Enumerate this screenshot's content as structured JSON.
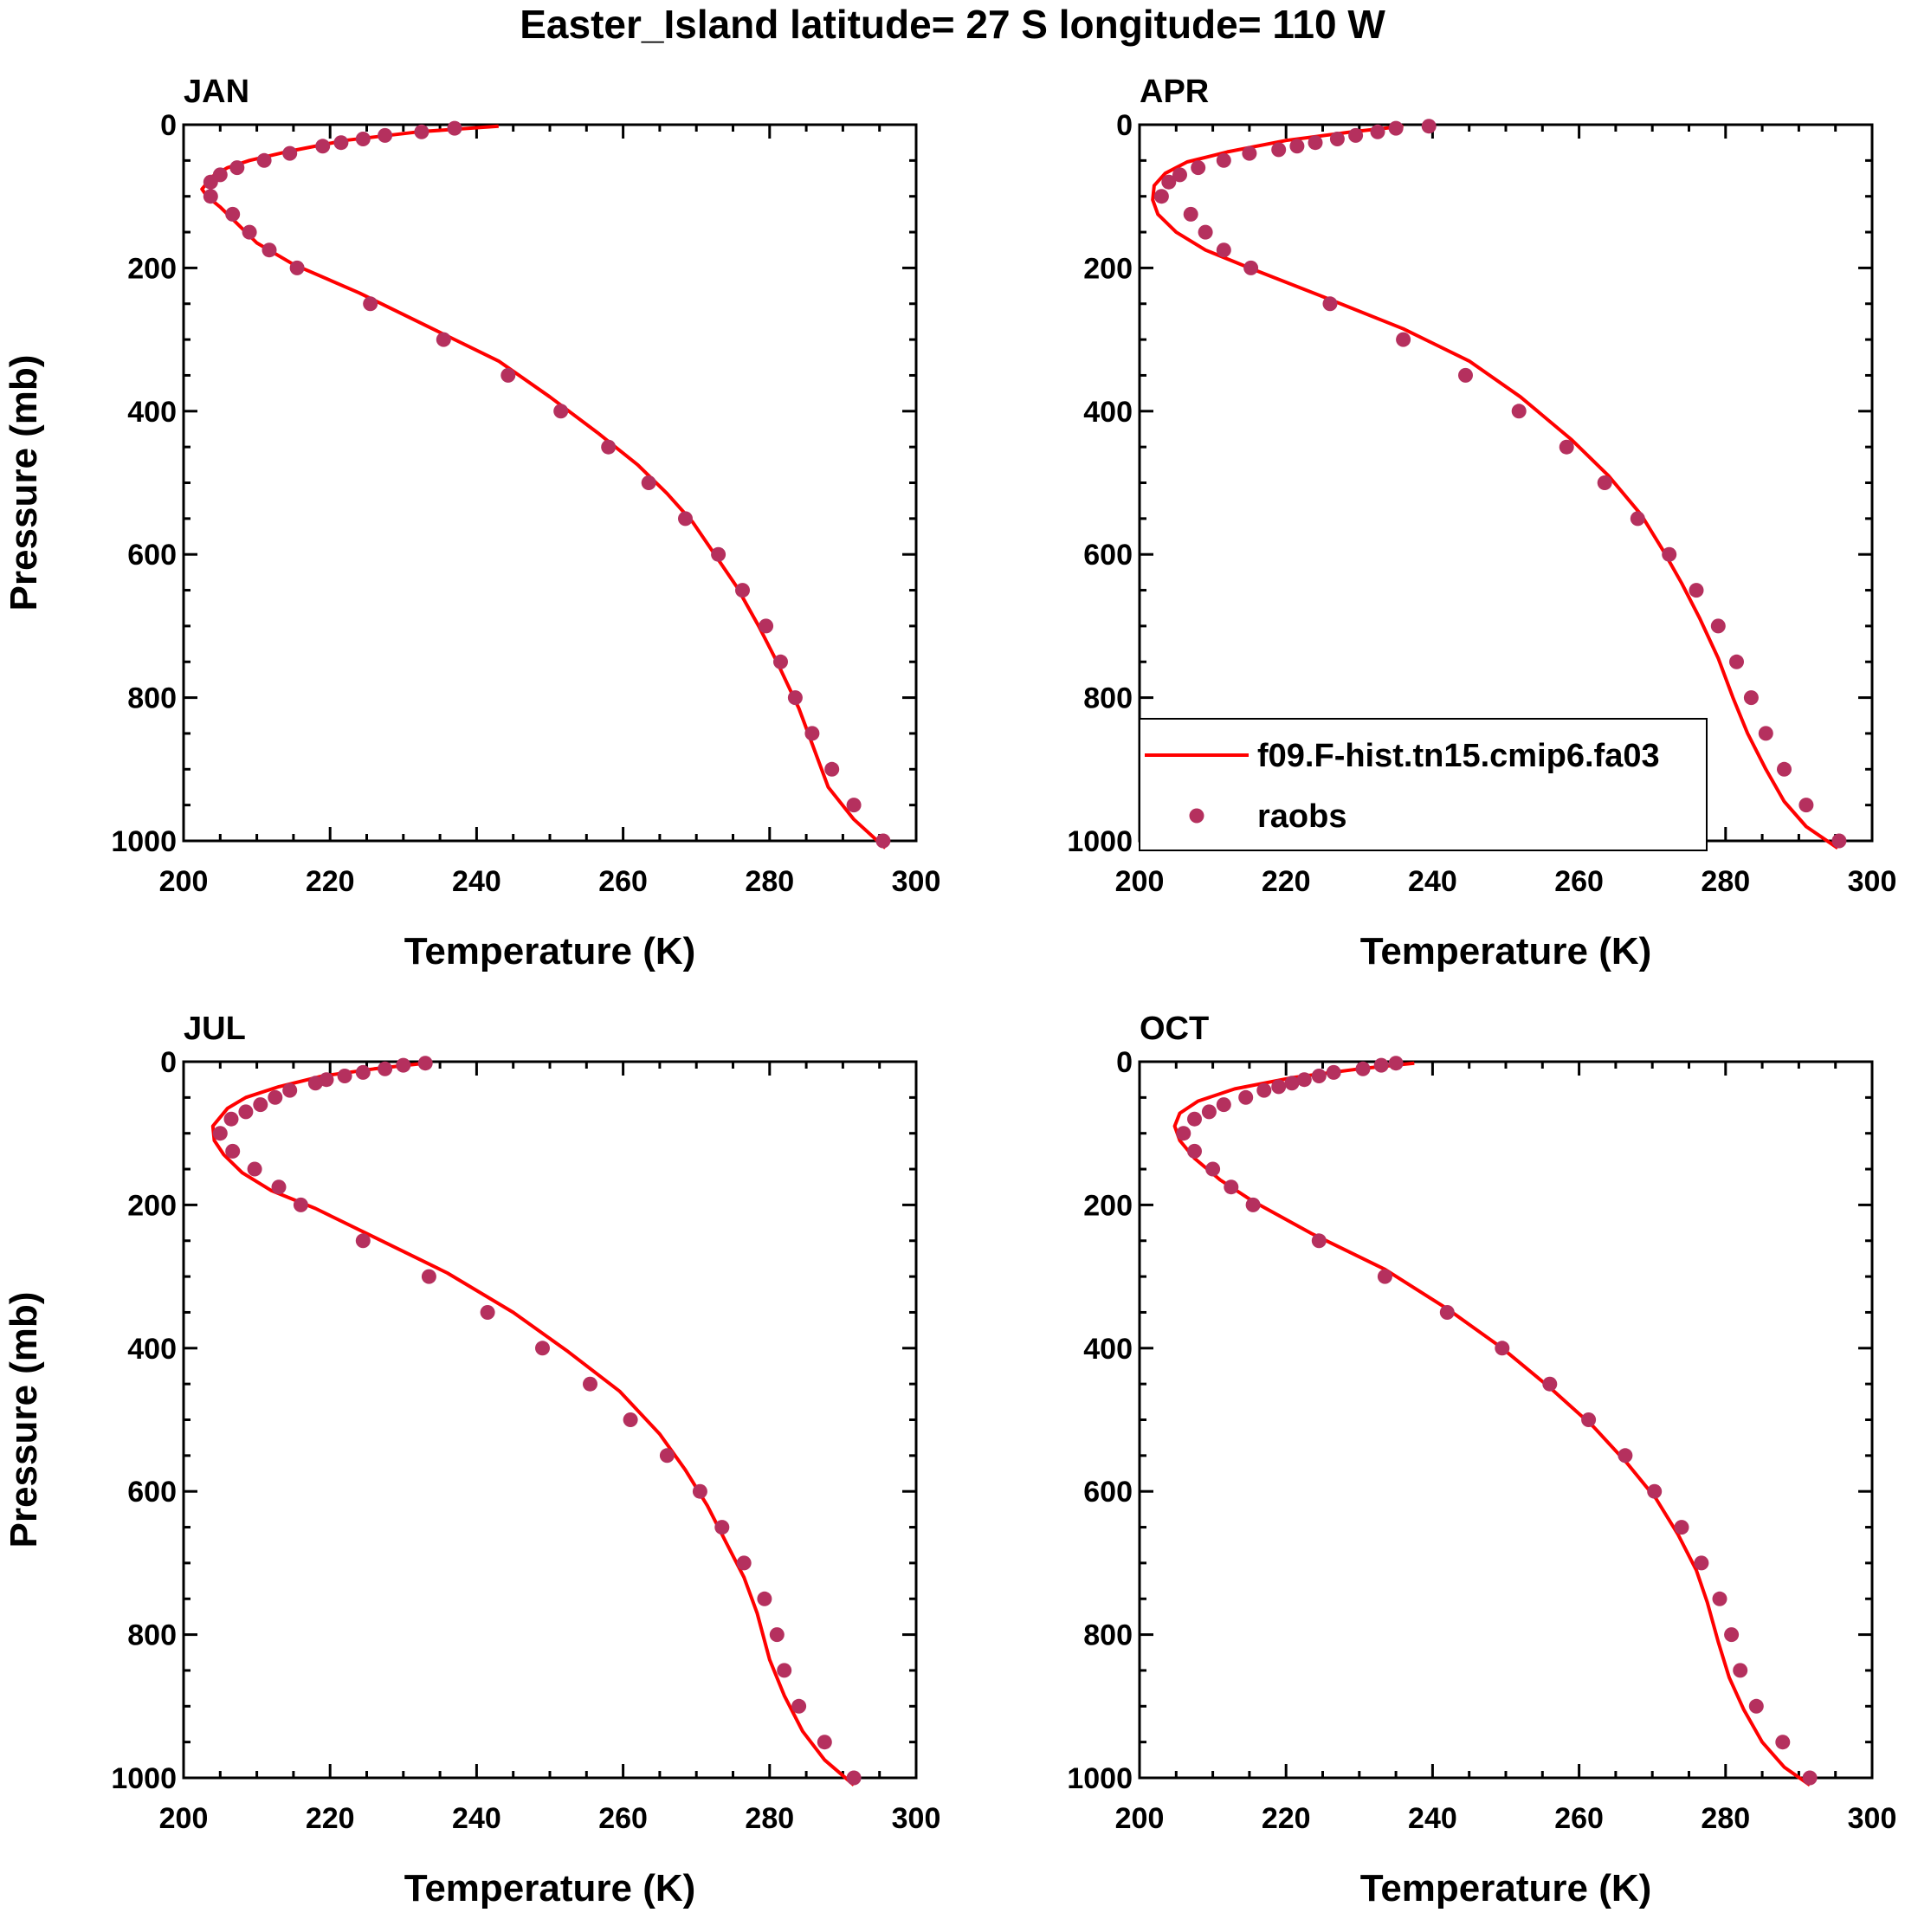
{
  "figure": {
    "title": "Easter_Island  latitude= 27 S longitude= 110 W"
  },
  "chart_data": [
    {
      "type": "line",
      "panel": "JAN",
      "xlabel": "Temperature (K)",
      "ylabel": "Pressure (mb)",
      "xlim": [
        200,
        300
      ],
      "ylim": [
        1000,
        0
      ],
      "xticks": [
        "200",
        "220",
        "240",
        "260",
        "280",
        "300"
      ],
      "yticks": [
        "0",
        "200",
        "400",
        "600",
        "800",
        "1000"
      ],
      "legend": null,
      "series": [
        {
          "name": "f09.F-hist.tn15.cmip6.fa03",
          "kind": "line",
          "color": "#ff0000",
          "x": [
            243,
            232,
            222,
            214,
            209,
            206,
            204,
            202.5,
            203.2,
            205,
            207,
            210,
            215,
            224,
            234,
            243,
            250,
            256.5,
            262,
            266,
            269.5,
            272.5,
            275.5,
            278.5,
            281,
            284,
            286,
            288,
            291.5,
            295.8
          ],
          "y": [
            2,
            10,
            22,
            38,
            50,
            60,
            72,
            90,
            100,
            115,
            135,
            165,
            195,
            235,
            285,
            330,
            380,
            430,
            475,
            515,
            555,
            600,
            645,
            700,
            750,
            815,
            870,
            925,
            970,
            1010
          ]
        },
        {
          "name": "raobs",
          "kind": "scatter",
          "color": "#b5305e",
          "x": [
            237,
            232.5,
            227.5,
            224.5,
            221.5,
            219,
            214.5,
            211,
            207.3,
            205,
            203.7,
            203.7,
            206.7,
            209,
            211.7,
            215.5,
            225.5,
            235.5,
            244.3,
            251.5,
            258,
            263.5,
            268.5,
            273,
            276.3,
            279.5,
            281.5,
            283.5,
            285.8,
            288.5,
            291.5,
            295.5
          ],
          "y": [
            5,
            10,
            15,
            20,
            25,
            30,
            40,
            50,
            60,
            70,
            80,
            100,
            125,
            150,
            175,
            200,
            250,
            300,
            350,
            400,
            450,
            500,
            550,
            600,
            650,
            700,
            750,
            800,
            850,
            900,
            950,
            1000
          ]
        }
      ]
    },
    {
      "type": "line",
      "panel": "APR",
      "xlabel": "Temperature (K)",
      "ylabel": "",
      "xlim": [
        200,
        300
      ],
      "ylim": [
        1000,
        0
      ],
      "xticks": [
        "200",
        "220",
        "240",
        "260",
        "280",
        "300"
      ],
      "yticks": [
        "0",
        "200",
        "400",
        "600",
        "800",
        "1000"
      ],
      "legend": "lower-left",
      "series": [
        {
          "name": "f09.F-hist.tn15.cmip6.fa03",
          "kind": "line",
          "color": "#ff0000",
          "x": [
            236,
            229,
            220,
            212,
            206.5,
            203.5,
            202,
            201.8,
            202.5,
            205,
            209,
            215,
            225,
            236,
            245,
            252,
            259,
            264,
            268.5,
            271.5,
            274,
            276.5,
            279,
            281,
            283,
            285.5,
            288,
            291,
            295.3
          ],
          "y": [
            2,
            10,
            22,
            38,
            52,
            68,
            85,
            105,
            125,
            150,
            175,
            200,
            240,
            285,
            330,
            380,
            440,
            490,
            545,
            595,
            640,
            690,
            745,
            800,
            850,
            900,
            945,
            980,
            1010
          ]
        },
        {
          "name": "raobs",
          "kind": "scatter",
          "color": "#b5305e",
          "x": [
            239.5,
            235,
            232.5,
            229.5,
            227,
            224,
            221.5,
            219,
            215,
            211.5,
            208,
            205.5,
            204,
            203,
            207,
            209,
            211.5,
            215.2,
            226,
            236,
            244.5,
            251.8,
            258.3,
            263.5,
            268,
            272.3,
            276,
            279,
            281.5,
            283.5,
            285.5,
            288,
            291,
            295.5
          ],
          "y": [
            2,
            5,
            10,
            15,
            20,
            25,
            30,
            35,
            40,
            50,
            60,
            70,
            80,
            100,
            125,
            150,
            175,
            200,
            250,
            300,
            350,
            400,
            450,
            500,
            550,
            600,
            650,
            700,
            750,
            800,
            850,
            900,
            950,
            1000
          ]
        }
      ]
    },
    {
      "type": "line",
      "panel": "JUL",
      "xlabel": "Temperature (K)",
      "ylabel": "Pressure (mb)",
      "xlim": [
        200,
        300
      ],
      "ylim": [
        1000,
        0
      ],
      "xticks": [
        "200",
        "220",
        "240",
        "260",
        "280",
        "300"
      ],
      "yticks": [
        "0",
        "200",
        "400",
        "600",
        "800",
        "1000"
      ],
      "legend": null,
      "series": [
        {
          "name": "f09.F-hist.tn15.cmip6.fa03",
          "kind": "line",
          "color": "#ff0000",
          "x": [
            233,
            226,
            219,
            213,
            208.5,
            206,
            204,
            204.2,
            205.5,
            208,
            212,
            218,
            226,
            236,
            245,
            252.5,
            259.5,
            265,
            268.5,
            271.5,
            274,
            276.5,
            278.3,
            280,
            282,
            284.5,
            287.5,
            291.5
          ],
          "y": [
            2,
            10,
            20,
            35,
            50,
            65,
            90,
            110,
            130,
            155,
            180,
            205,
            245,
            295,
            350,
            405,
            460,
            520,
            570,
            620,
            670,
            720,
            770,
            835,
            885,
            935,
            975,
            1010
          ]
        },
        {
          "name": "raobs",
          "kind": "scatter",
          "color": "#b5305e",
          "x": [
            233,
            230,
            227.5,
            224.5,
            222,
            219.5,
            218,
            214.5,
            212.5,
            210.5,
            208.5,
            206.5,
            205,
            206.7,
            209.7,
            213,
            216,
            224.5,
            233.5,
            241.5,
            249,
            255.5,
            261,
            266,
            270.5,
            273.5,
            276.5,
            279.3,
            281,
            282,
            284,
            287.5,
            291.5
          ],
          "y": [
            2,
            5,
            10,
            15,
            20,
            25,
            30,
            40,
            50,
            60,
            70,
            80,
            100,
            125,
            150,
            175,
            200,
            250,
            300,
            350,
            400,
            450,
            500,
            550,
            600,
            650,
            700,
            750,
            800,
            850,
            900,
            950,
            1000
          ]
        }
      ]
    },
    {
      "type": "line",
      "panel": "OCT",
      "xlabel": "Temperature (K)",
      "ylabel": "",
      "xlim": [
        200,
        300
      ],
      "ylim": [
        1000,
        0
      ],
      "xticks": [
        "200",
        "220",
        "240",
        "260",
        "280",
        "300"
      ],
      "yticks": [
        "0",
        "200",
        "400",
        "600",
        "800",
        "1000"
      ],
      "legend": null,
      "series": [
        {
          "name": "f09.F-hist.tn15.cmip6.fa03",
          "kind": "line",
          "color": "#ff0000",
          "x": [
            237.5,
            230,
            221,
            213,
            208,
            205.5,
            204.8,
            205.5,
            207.5,
            211,
            215.5,
            223.5,
            233.5,
            242,
            249.5,
            256,
            262,
            266.5,
            270.5,
            273.5,
            276,
            277.5,
            279,
            280.5,
            282.5,
            285,
            288,
            291.5
          ],
          "y": [
            2,
            10,
            22,
            38,
            55,
            72,
            90,
            110,
            135,
            165,
            195,
            240,
            290,
            345,
            400,
            455,
            510,
            560,
            610,
            660,
            710,
            755,
            810,
            860,
            905,
            950,
            985,
            1010
          ]
        },
        {
          "name": "raobs",
          "kind": "scatter",
          "color": "#b5305e",
          "x": [
            235,
            233,
            230.5,
            226.5,
            224.5,
            222.5,
            220.8,
            219,
            217,
            214.5,
            211.5,
            209.5,
            207.5,
            206,
            207.5,
            210,
            212.5,
            215.5,
            224.5,
            233.5,
            242,
            249.5,
            256,
            261.3,
            266.3,
            270.3,
            274,
            276.7,
            279.2,
            280.8,
            282,
            284.2,
            287.8,
            291.5
          ],
          "y": [
            2,
            5,
            10,
            15,
            20,
            25,
            30,
            35,
            40,
            50,
            60,
            70,
            80,
            100,
            125,
            150,
            175,
            200,
            250,
            300,
            350,
            400,
            450,
            500,
            550,
            600,
            650,
            700,
            750,
            800,
            850,
            900,
            950,
            1000
          ]
        }
      ]
    }
  ]
}
